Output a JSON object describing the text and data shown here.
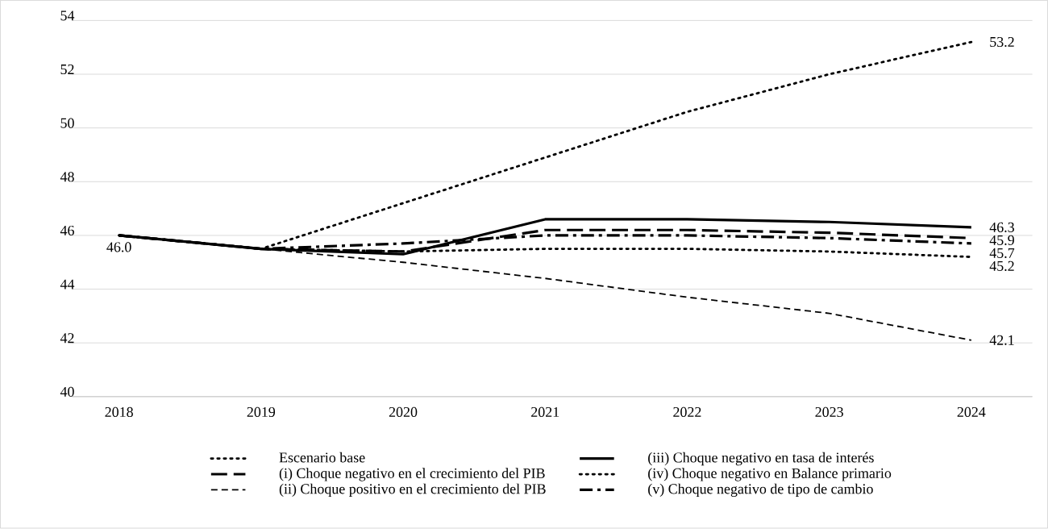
{
  "chart_data": {
    "type": "line",
    "categories": [
      "2018",
      "2019",
      "2020",
      "2021",
      "2022",
      "2023",
      "2024"
    ],
    "series": [
      {
        "name": "Escenario base",
        "color": "#000000",
        "line_style": "dotted",
        "values": [
          46.0,
          45.5,
          45.4,
          45.5,
          45.5,
          45.4,
          45.2
        ],
        "value_labels": [
          "46.0",
          null,
          null,
          null,
          null,
          null,
          "45.2"
        ]
      },
      {
        "name": "(iii) Choque negativo en tasa de interés",
        "color": "#000000",
        "line_style": "solid",
        "values": [
          46.0,
          45.5,
          45.3,
          46.6,
          46.6,
          46.5,
          46.3
        ],
        "value_labels": [
          null,
          null,
          null,
          null,
          null,
          null,
          "46.3"
        ]
      },
      {
        "name": "(i) Choque negativo en el crecimiento del PIB",
        "color": "#000000",
        "line_style": "longdash",
        "values": [
          46.0,
          45.5,
          45.4,
          46.2,
          46.2,
          46.1,
          45.9
        ],
        "value_labels": [
          null,
          null,
          null,
          null,
          null,
          null,
          "45.9"
        ]
      },
      {
        "name": "(iv) Choque negativo en Balance primario",
        "color": "#000000",
        "line_style": "dotted",
        "values": [
          46.0,
          45.5,
          47.2,
          48.9,
          50.6,
          52.0,
          53.2
        ],
        "value_labels": [
          null,
          null,
          null,
          null,
          null,
          null,
          "53.2"
        ]
      },
      {
        "name": "(ii) Choque positivo en el crecimiento del PIB",
        "color": "#000000",
        "line_style": "dashed",
        "values": [
          46.0,
          45.5,
          45.0,
          44.4,
          43.7,
          43.1,
          42.1
        ],
        "value_labels": [
          null,
          null,
          null,
          null,
          null,
          null,
          "42.1"
        ]
      },
      {
        "name": "(v) Choque negativo de tipo de cambio",
        "color": "#000000",
        "line_style": "dashdot",
        "values": [
          46.0,
          45.5,
          45.7,
          46.0,
          46.0,
          45.9,
          45.7
        ],
        "value_labels": [
          null,
          null,
          null,
          null,
          null,
          null,
          "45.7"
        ]
      }
    ],
    "ylim": [
      40,
      54
    ],
    "yticks": [
      40,
      42,
      44,
      46,
      48,
      50,
      52,
      54
    ],
    "grid": "y",
    "legend": "bottom",
    "marker": "none"
  }
}
